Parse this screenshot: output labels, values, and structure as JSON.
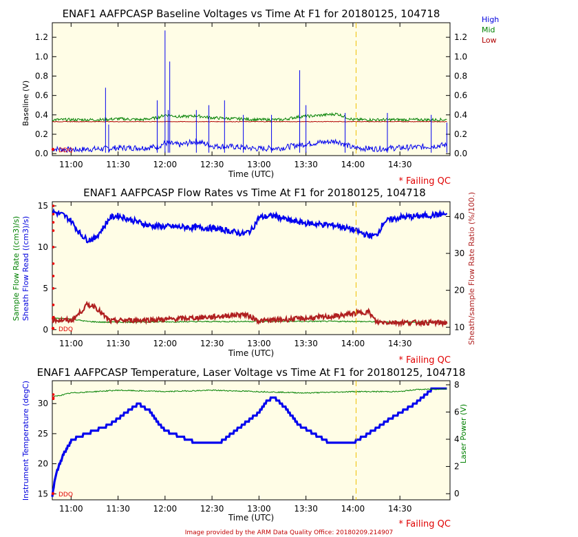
{
  "footer": "Image provided by the ARM Data Quality Office: 20180209.214907",
  "ddq_label": "DDQ",
  "legend": {
    "high": {
      "label": "High",
      "color": "#0000dd"
    },
    "mid": {
      "label": "Mid",
      "color": "#008000"
    },
    "low": {
      "label": "Low",
      "color": "#b00000"
    }
  },
  "colors": {
    "plot_bg": "#fffde6",
    "blue": "#0000ee",
    "green": "#008000",
    "brown": "#b02020",
    "red": "#ee0000",
    "marker_line": "#f0c000"
  },
  "time_ticks": [
    "11:00",
    "11:30",
    "12:00",
    "12:30",
    "13:00",
    "13:30",
    "14:00",
    "14:30"
  ],
  "marker_time": "14:02",
  "chart_data": [
    {
      "type": "line",
      "title": "ENAF1 AAFPCASP Baseline Voltages vs Time At F1 for 20180125, 104718",
      "xlabel": "Time (UTC)",
      "ylabel": "Baseline (V)",
      "xlim": [
        "10:48",
        "15:02"
      ],
      "ylim": [
        -0.02,
        1.35
      ],
      "y_ticks": [
        "0.0",
        "0.2",
        "0.4",
        "0.6",
        "0.8",
        "1.0",
        "1.2"
      ],
      "y_tick_values": [
        0,
        0.2,
        0.4,
        0.6,
        0.8,
        1.0,
        1.2
      ],
      "right_ticks": [
        "0.0",
        "0.2",
        "0.4",
        "0.6",
        "0.8",
        "1.0",
        "1.2"
      ],
      "qc_label": "* Failing QC",
      "series": [
        {
          "name": "High",
          "color": "#0000ee",
          "x": [
            "10:48",
            "11:00",
            "11:20",
            "11:30",
            "11:45",
            "11:55",
            "12:00",
            "12:10",
            "12:20",
            "12:30",
            "12:45",
            "13:00",
            "13:15",
            "13:25",
            "13:35",
            "13:50",
            "14:00",
            "14:15",
            "14:30",
            "14:45",
            "15:00"
          ],
          "y": [
            0.02,
            0.01,
            0.02,
            0.03,
            0.03,
            0.04,
            0.08,
            0.06,
            0.1,
            0.05,
            0.04,
            0.02,
            0.03,
            0.06,
            0.08,
            0.1,
            0.03,
            0.02,
            0.03,
            0.04,
            0.06
          ]
        },
        {
          "name": "Mid",
          "color": "#008000",
          "x": [
            "10:48",
            "11:00",
            "11:20",
            "11:30",
            "11:45",
            "11:55",
            "12:00",
            "12:10",
            "12:20",
            "12:30",
            "12:45",
            "13:00",
            "13:15",
            "13:25",
            "13:35",
            "13:50",
            "14:00",
            "14:15",
            "14:30",
            "14:45",
            "15:00"
          ],
          "y": [
            0.35,
            0.35,
            0.35,
            0.36,
            0.35,
            0.37,
            0.4,
            0.38,
            0.39,
            0.37,
            0.36,
            0.35,
            0.35,
            0.38,
            0.39,
            0.41,
            0.35,
            0.35,
            0.35,
            0.35,
            0.35
          ]
        },
        {
          "name": "Low",
          "color": "#b00000",
          "x": [
            "10:48",
            "11:30",
            "12:00",
            "12:30",
            "13:00",
            "13:30",
            "14:00",
            "14:30",
            "15:00"
          ],
          "y": [
            0.33,
            0.33,
            0.33,
            0.33,
            0.33,
            0.33,
            0.33,
            0.33,
            0.33
          ]
        }
      ]
    },
    {
      "type": "line",
      "title": "ENAF1 AAFPCASP Flow Rates vs Time At F1 for 20180125, 104718",
      "xlabel": "Time (UTC)",
      "ylabel": "Sample Flow Rate ((cm3)/s)",
      "ylabel2": "Sheath Flow Read ((cm3)/s)",
      "ylabel_right": "Sheath/sample Flow Rate Ratio (%/100.)",
      "xlim": [
        "10:48",
        "15:02"
      ],
      "ylim": [
        -0.6,
        15.5
      ],
      "y_ticks": [
        "0",
        "5",
        "10",
        "15"
      ],
      "y_tick_values": [
        0,
        5,
        10,
        15
      ],
      "right_ticks": [
        "10",
        "20",
        "30",
        "40"
      ],
      "right_tick_values": [
        10,
        20,
        30,
        40
      ],
      "right_lim": [
        8,
        44
      ],
      "qc_label": "* Failing QC",
      "series": [
        {
          "name": "Sheath Flow Read",
          "color": "#0000ee",
          "x": [
            "10:48",
            "10:55",
            "11:00",
            "11:05",
            "11:10",
            "11:15",
            "11:20",
            "11:25",
            "11:30",
            "11:40",
            "11:50",
            "12:00",
            "12:30",
            "12:40",
            "12:50",
            "12:55",
            "13:00",
            "13:10",
            "13:20",
            "13:30",
            "13:50",
            "14:00",
            "14:10",
            "14:15",
            "14:20",
            "14:30",
            "14:45",
            "15:00"
          ],
          "y": [
            14.3,
            13.9,
            13.2,
            11.8,
            10.9,
            11.0,
            12.2,
            13.6,
            13.8,
            13.2,
            12.6,
            12.5,
            12.3,
            12.0,
            11.6,
            12.0,
            13.6,
            13.8,
            13.2,
            12.9,
            12.6,
            12.1,
            11.4,
            11.4,
            13.1,
            13.6,
            13.8,
            14.0
          ]
        },
        {
          "name": "Sample Flow Rate",
          "color": "#008000",
          "x": [
            "10:48",
            "11:00",
            "11:10",
            "11:20",
            "11:30",
            "12:00",
            "13:00",
            "14:00",
            "14:30",
            "15:00"
          ],
          "y": [
            1.4,
            1.3,
            1.0,
            0.9,
            0.9,
            0.95,
            1.0,
            1.0,
            0.9,
            0.9
          ]
        },
        {
          "name": "Sheath/sample Flow Rate Ratio",
          "color": "#b02020",
          "x": [
            "10:48",
            "11:00",
            "11:05",
            "11:10",
            "11:15",
            "11:20",
            "11:25",
            "11:30",
            "12:00",
            "12:30",
            "12:50",
            "12:55",
            "13:00",
            "13:30",
            "13:50",
            "14:00",
            "14:10",
            "14:15",
            "14:30",
            "15:00"
          ],
          "y": [
            12.0,
            11.8,
            13.6,
            16.0,
            15.8,
            13.5,
            11.6,
            11.8,
            12.1,
            12.8,
            13.5,
            12.8,
            11.7,
            12.4,
            13.0,
            13.7,
            14.2,
            11.4,
            11.3,
            11.2
          ]
        }
      ]
    },
    {
      "type": "line",
      "title": "ENAF1 AAFPCASP Temperature, Laser Voltage vs Time At F1 for 20180125, 104718",
      "xlabel": "Time (UTC)",
      "ylabel": "Instrument Temperature (degC)",
      "ylabel_right": "Laser Power (V)",
      "xlim": [
        "10:48",
        "15:02"
      ],
      "ylim": [
        14,
        33.8
      ],
      "y_ticks": [
        "15",
        "20",
        "25",
        "30"
      ],
      "y_tick_values": [
        15,
        20,
        25,
        30
      ],
      "right_ticks": [
        "0",
        "2",
        "4",
        "6",
        "8"
      ],
      "right_tick_values": [
        0,
        2,
        4,
        6,
        8
      ],
      "right_lim": [
        -0.45,
        8.3
      ],
      "qc_label": "* Failing QC",
      "series": [
        {
          "name": "Instrument Temperature",
          "color": "#0000ee",
          "x": [
            "10:48",
            "10:50",
            "10:55",
            "11:00",
            "11:05",
            "11:15",
            "11:25",
            "11:35",
            "11:43",
            "11:50",
            "11:55",
            "12:00",
            "12:10",
            "12:20",
            "12:35",
            "12:45",
            "13:00",
            "13:05",
            "13:10",
            "13:18",
            "13:25",
            "13:35",
            "13:45",
            "14:00",
            "14:10",
            "14:20",
            "14:30",
            "14:40",
            "14:50",
            "15:00"
          ],
          "y": [
            14.5,
            18.0,
            21.5,
            23.8,
            24.5,
            25.5,
            26.5,
            28.5,
            30.0,
            28.8,
            27.0,
            25.5,
            24.5,
            23.5,
            23.5,
            25.5,
            28.5,
            30.5,
            31.0,
            29.0,
            26.5,
            25.0,
            23.5,
            23.5,
            25.0,
            26.8,
            28.5,
            30.0,
            32.3,
            32.3
          ]
        },
        {
          "name": "Laser Power",
          "color": "#008000",
          "x": [
            "10:48",
            "11:00",
            "11:30",
            "12:00",
            "12:30",
            "13:00",
            "13:30",
            "14:00",
            "14:30",
            "14:40",
            "15:00"
          ],
          "y": [
            7.1,
            7.4,
            7.6,
            7.5,
            7.6,
            7.5,
            7.4,
            7.5,
            7.5,
            7.65,
            7.7
          ]
        }
      ]
    }
  ]
}
